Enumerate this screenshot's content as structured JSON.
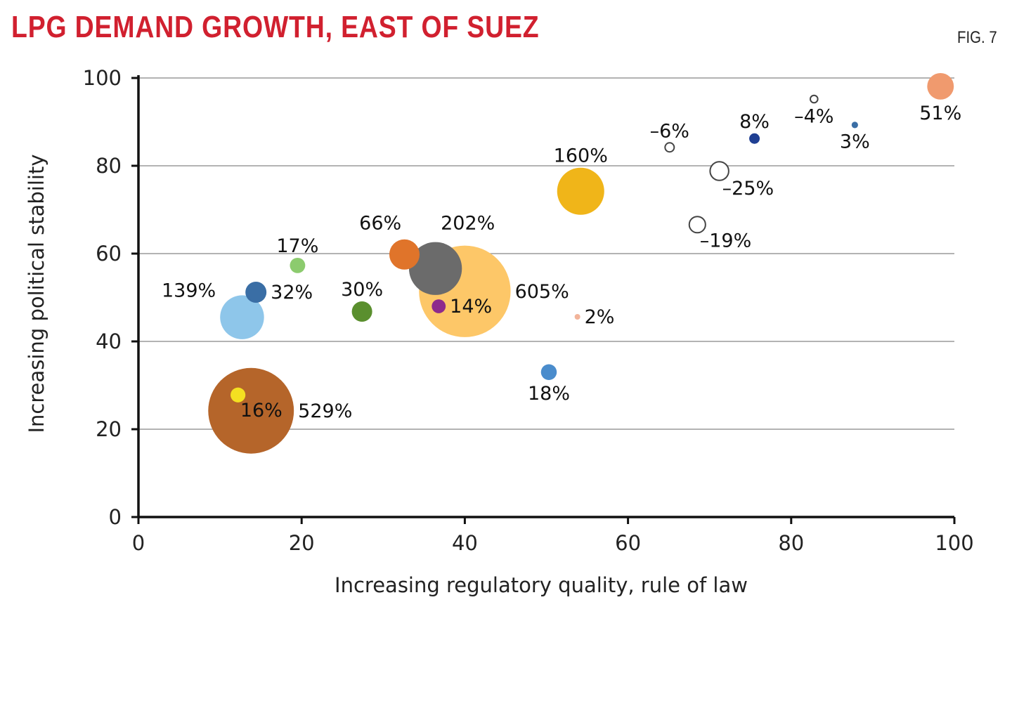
{
  "header": {
    "title": "LPG DEMAND GROWTH, EAST OF SUEZ",
    "fig_label": "FIG. 7"
  },
  "chart_data": {
    "type": "scatter",
    "subtype": "bubble",
    "title": "LPG DEMAND GROWTH, EAST OF SUEZ",
    "xlabel": "Increasing regulatory quality, rule of law",
    "ylabel": "Increasing political stability",
    "xlim": [
      0,
      100
    ],
    "ylim": [
      0,
      100
    ],
    "xticks": [
      0,
      20,
      40,
      60,
      80,
      100
    ],
    "yticks": [
      0,
      20,
      40,
      60,
      80,
      100
    ],
    "grid": "horizontal",
    "legend": "none",
    "points": [
      {
        "label": "529%",
        "value": 529,
        "x": 13.8,
        "y": 24.2,
        "color": "#b5652a",
        "filled": true,
        "label_pos": "right"
      },
      {
        "label": "16%",
        "value": 16,
        "x": 12.2,
        "y": 27.8,
        "color": "#f4e021",
        "filled": true,
        "label_pos": "below-right"
      },
      {
        "label": "139%",
        "value": 139,
        "x": 12.7,
        "y": 45.5,
        "color": "#8ec6ea",
        "filled": true,
        "label_pos": "upper-left"
      },
      {
        "label": "32%",
        "value": 32,
        "x": 14.4,
        "y": 51.2,
        "color": "#3a6ea5",
        "filled": true,
        "label_pos": "right"
      },
      {
        "label": "17%",
        "value": 17,
        "x": 19.5,
        "y": 57.3,
        "color": "#8ccb6e",
        "filled": true,
        "label_pos": "above"
      },
      {
        "label": "30%",
        "value": 30,
        "x": 27.4,
        "y": 46.8,
        "color": "#5a8f2e",
        "filled": true,
        "label_pos": "above"
      },
      {
        "label": "66%",
        "value": 66,
        "x": 32.6,
        "y": 59.8,
        "color": "#e0742a",
        "filled": true,
        "label_pos": "above-left"
      },
      {
        "label": "202%",
        "value": 202,
        "x": 36.4,
        "y": 56.6,
        "color": "#6b6b6b",
        "filled": true,
        "label_pos": "above-right"
      },
      {
        "label": "605%",
        "value": 605,
        "x": 40.0,
        "y": 51.4,
        "color": "#fdc768",
        "filled": true,
        "label_pos": "right"
      },
      {
        "label": "14%",
        "value": 14,
        "x": 36.8,
        "y": 48.0,
        "color": "#8e2a8c",
        "filled": true,
        "label_pos": "right"
      },
      {
        "label": "2%",
        "value": 2,
        "x": 53.8,
        "y": 45.6,
        "color": "#f2b49a",
        "filled": true,
        "label_pos": "right"
      },
      {
        "label": "18%",
        "value": 18,
        "x": 50.3,
        "y": 33.0,
        "color": "#4a8ccc",
        "filled": true,
        "label_pos": "below"
      },
      {
        "label": "160%",
        "value": 160,
        "x": 54.2,
        "y": 74.2,
        "color": "#f0b519",
        "filled": true,
        "label_pos": "above"
      },
      {
        "label": "–6%",
        "value": -6,
        "x": 65.1,
        "y": 84.2,
        "color": "#444444",
        "filled": false,
        "label_pos": "above"
      },
      {
        "label": "–25%",
        "value": -25,
        "x": 71.2,
        "y": 78.8,
        "color": "#444444",
        "filled": false,
        "label_pos": "below-right"
      },
      {
        "label": "–19%",
        "value": -19,
        "x": 68.5,
        "y": 66.6,
        "color": "#444444",
        "filled": false,
        "label_pos": "below-right"
      },
      {
        "label": "8%",
        "value": 8,
        "x": 75.5,
        "y": 86.2,
        "color": "#1f3f93",
        "filled": true,
        "label_pos": "above"
      },
      {
        "label": "–4%",
        "value": -4,
        "x": 82.8,
        "y": 95.2,
        "color": "#444444",
        "filled": false,
        "label_pos": "below"
      },
      {
        "label": "3%",
        "value": 3,
        "x": 87.8,
        "y": 89.3,
        "color": "#3a6ea5",
        "filled": true,
        "label_pos": "below"
      },
      {
        "label": "51%",
        "value": 51,
        "x": 98.3,
        "y": 98.1,
        "color": "#f09a6e",
        "filled": true,
        "label_pos": "below"
      }
    ]
  }
}
